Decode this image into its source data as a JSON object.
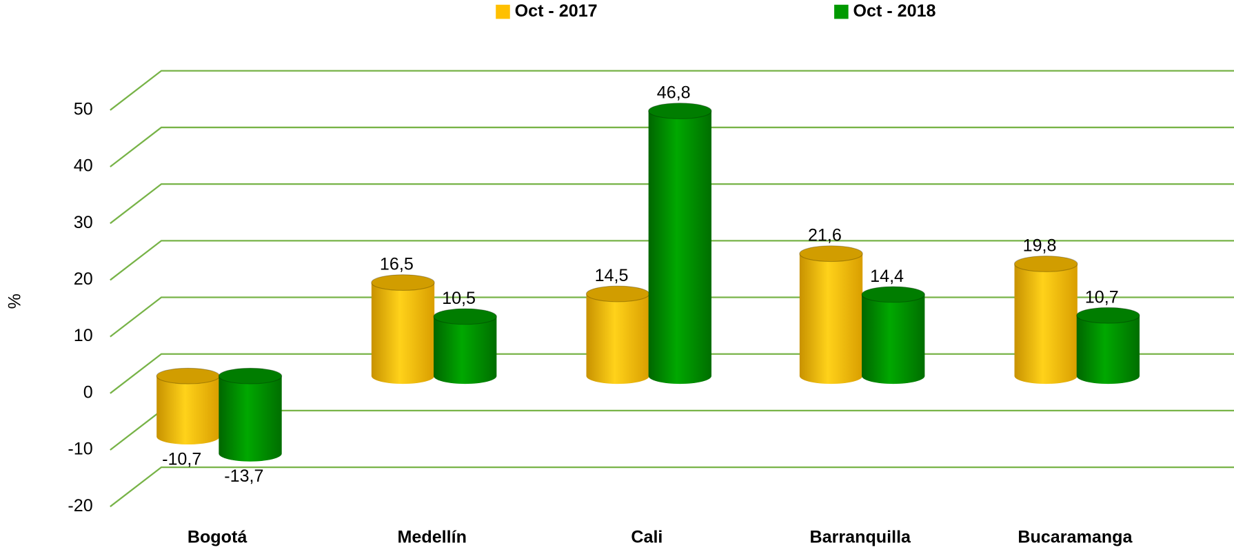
{
  "chart_data": {
    "type": "bar3d",
    "y_label": "%",
    "categories": [
      "Bogotá",
      "Medellín",
      "Cali",
      "Barranquilla",
      "Bucaramanga"
    ],
    "series": [
      {
        "name": "Oct - 2017",
        "color": "#ffc000",
        "values": [
          -10.7,
          16.5,
          14.5,
          21.6,
          19.8
        ],
        "value_labels": [
          "-10,7",
          "16,5",
          "14,5",
          "21,6",
          "19,8"
        ]
      },
      {
        "name": "Oct - 2018",
        "color": "#009900",
        "values": [
          -13.7,
          10.5,
          46.8,
          14.4,
          10.7
        ],
        "value_labels": [
          "-13,7",
          "10,5",
          "46,8",
          "14,4",
          "10,7"
        ]
      }
    ],
    "ylim": [
      -20,
      50
    ],
    "yticks": [
      -20,
      -10,
      0,
      10,
      20,
      30,
      40,
      50
    ],
    "grid": true,
    "grid_color": "#77b347",
    "legend": "top"
  }
}
